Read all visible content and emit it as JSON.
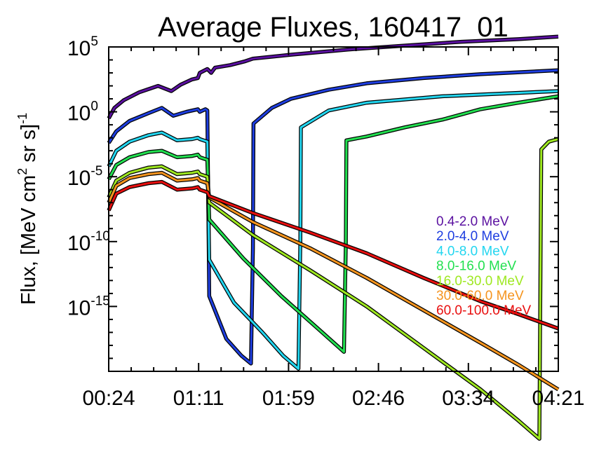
{
  "chart_data": {
    "type": "line",
    "title": "Average Fluxes, 160417_01",
    "ylabel": {
      "prefix": "Flux, [MeV cm",
      "sup1": "2",
      "middle": " sr s]",
      "sup2": "-1"
    },
    "xlabel": "",
    "y_scale": "log",
    "ylim_exp": [
      -20,
      5
    ],
    "y_ticks": [
      {
        "base": "10",
        "exp": "5",
        "value_exp": 5
      },
      {
        "base": "10",
        "exp": "0",
        "value_exp": 0
      },
      {
        "base": "10",
        "exp": "-5",
        "value_exp": -5
      },
      {
        "base": "10",
        "exp": "-10",
        "value_exp": -10
      },
      {
        "base": "10",
        "exp": "-15",
        "value_exp": -15
      }
    ],
    "x_unit": "minutes after 00:00 UT",
    "xlim": [
      24,
      261
    ],
    "x_ticks": [
      {
        "label": "00:24",
        "value": 24
      },
      {
        "label": "01:11",
        "value": 71.4
      },
      {
        "label": "01:59",
        "value": 118.8
      },
      {
        "label": "02:46",
        "value": 166.2
      },
      {
        "label": "03:34",
        "value": 213.6
      },
      {
        "label": "04:21",
        "value": 261
      }
    ],
    "grid": false,
    "legend_position": "right, lower half",
    "series": [
      {
        "name": "0.4-2.0 MeV",
        "color": "#5a10a0",
        "points": [
          [
            24,
            -0.5
          ],
          [
            27,
            0.3
          ],
          [
            32,
            0.9
          ],
          [
            40,
            1.5
          ],
          [
            50,
            2.0
          ],
          [
            57,
            1.6
          ],
          [
            62,
            2.1
          ],
          [
            68,
            2.5
          ],
          [
            71,
            2.6
          ],
          [
            72,
            3.0
          ],
          [
            76,
            3.3
          ],
          [
            78,
            3.0
          ],
          [
            80,
            3.4
          ],
          [
            88,
            3.6
          ],
          [
            96,
            3.9
          ],
          [
            100,
            4.1
          ],
          [
            120,
            4.4
          ],
          [
            150,
            4.8
          ],
          [
            180,
            5.1
          ],
          [
            210,
            5.4
          ],
          [
            240,
            5.6
          ],
          [
            261,
            5.8
          ]
        ]
      },
      {
        "name": "2.0-4.0 MeV",
        "color": "#1e3ee0",
        "points": [
          [
            24,
            -2.4
          ],
          [
            28,
            -1.5
          ],
          [
            35,
            -0.7
          ],
          [
            45,
            -0.1
          ],
          [
            52,
            0.3
          ],
          [
            58,
            -0.3
          ],
          [
            65,
            0.0
          ],
          [
            71,
            0.2
          ],
          [
            72,
            0.0
          ],
          [
            75,
            0.2
          ],
          [
            76,
            0.1
          ],
          [
            77,
            -14.2
          ],
          [
            86,
            -17.5
          ],
          [
            94,
            -18.8
          ],
          [
            99,
            -19.4
          ],
          [
            100,
            -10.5
          ],
          [
            100.3,
            -0.9
          ],
          [
            110,
            0.3
          ],
          [
            120,
            1.0
          ],
          [
            140,
            1.7
          ],
          [
            160,
            2.2
          ],
          [
            190,
            2.6
          ],
          [
            220,
            2.9
          ],
          [
            261,
            3.2
          ]
        ]
      },
      {
        "name": "4.0-8.0 MeV",
        "color": "#22d6f0",
        "points": [
          [
            24,
            -4.2
          ],
          [
            28,
            -3.0
          ],
          [
            35,
            -2.3
          ],
          [
            45,
            -1.8
          ],
          [
            52,
            -1.6
          ],
          [
            60,
            -2.2
          ],
          [
            68,
            -2.1
          ],
          [
            71,
            -2.0
          ],
          [
            72,
            -2.1
          ],
          [
            76,
            -2.3
          ],
          [
            77,
            -11.4
          ],
          [
            90,
            -14.7
          ],
          [
            105,
            -17.0
          ],
          [
            116,
            -18.8
          ],
          [
            124,
            -19.8
          ],
          [
            125,
            -10.0
          ],
          [
            125.3,
            -1.2
          ],
          [
            140,
            0.1
          ],
          [
            160,
            0.7
          ],
          [
            200,
            1.2
          ],
          [
            261,
            1.6
          ]
        ]
      },
      {
        "name": "8.0-16.0 MeV",
        "color": "#22e050",
        "points": [
          [
            24,
            -5.2
          ],
          [
            28,
            -4.1
          ],
          [
            35,
            -3.5
          ],
          [
            45,
            -3.1
          ],
          [
            52,
            -3.0
          ],
          [
            60,
            -3.5
          ],
          [
            68,
            -3.4
          ],
          [
            71,
            -3.3
          ],
          [
            72,
            -3.5
          ],
          [
            76,
            -3.7
          ],
          [
            77,
            -8.3
          ],
          [
            95,
            -11.3
          ],
          [
            115,
            -14.2
          ],
          [
            135,
            -16.8
          ],
          [
            148,
            -18.5
          ],
          [
            149,
            -10.0
          ],
          [
            149.3,
            -2.2
          ],
          [
            160,
            -1.9
          ],
          [
            180,
            -1.2
          ],
          [
            200,
            -0.6
          ],
          [
            220,
            0.2
          ],
          [
            240,
            0.7
          ],
          [
            261,
            1.2
          ]
        ]
      },
      {
        "name": "16.0-30.0 MeV",
        "color": "#9ee820",
        "points": [
          [
            24,
            -6.6
          ],
          [
            28,
            -5.3
          ],
          [
            35,
            -4.7
          ],
          [
            45,
            -4.3
          ],
          [
            52,
            -4.2
          ],
          [
            60,
            -4.8
          ],
          [
            68,
            -4.7
          ],
          [
            71,
            -4.6
          ],
          [
            72,
            -4.8
          ],
          [
            76,
            -5.0
          ],
          [
            77,
            -7.0
          ],
          [
            100,
            -9.5
          ],
          [
            130,
            -12.2
          ],
          [
            160,
            -15.0
          ],
          [
            190,
            -18.2
          ],
          [
            220,
            -21.4
          ],
          [
            240,
            -23.8
          ],
          [
            251,
            -25.2
          ],
          [
            252,
            -2.9
          ],
          [
            256,
            -2.3
          ],
          [
            261,
            -2.1
          ]
        ]
      },
      {
        "name": "30.0-60.0 MeV",
        "color": "#f5941e",
        "points": [
          [
            24,
            -7.0
          ],
          [
            28,
            -5.7
          ],
          [
            35,
            -5.1
          ],
          [
            45,
            -4.8
          ],
          [
            52,
            -4.7
          ],
          [
            60,
            -5.3
          ],
          [
            68,
            -5.2
          ],
          [
            71,
            -5.1
          ],
          [
            72,
            -5.3
          ],
          [
            76,
            -5.5
          ],
          [
            77,
            -6.6
          ],
          [
            100,
            -8.5
          ],
          [
            130,
            -10.5
          ],
          [
            160,
            -12.8
          ],
          [
            190,
            -15.3
          ],
          [
            220,
            -17.8
          ],
          [
            240,
            -19.5
          ],
          [
            261,
            -21.4
          ]
        ]
      },
      {
        "name": "60.0-100.0 MeV",
        "color": "#e80f0f",
        "points": [
          [
            24,
            -7.6
          ],
          [
            28,
            -6.3
          ],
          [
            35,
            -5.8
          ],
          [
            45,
            -5.5
          ],
          [
            52,
            -5.4
          ],
          [
            60,
            -6.0
          ],
          [
            68,
            -5.9
          ],
          [
            71,
            -5.8
          ],
          [
            72,
            -6.0
          ],
          [
            76,
            -6.2
          ],
          [
            77,
            -6.5
          ],
          [
            100,
            -7.8
          ],
          [
            130,
            -9.3
          ],
          [
            160,
            -10.9
          ],
          [
            190,
            -12.8
          ],
          [
            220,
            -14.6
          ],
          [
            240,
            -15.6
          ],
          [
            261,
            -16.7
          ]
        ]
      }
    ]
  }
}
